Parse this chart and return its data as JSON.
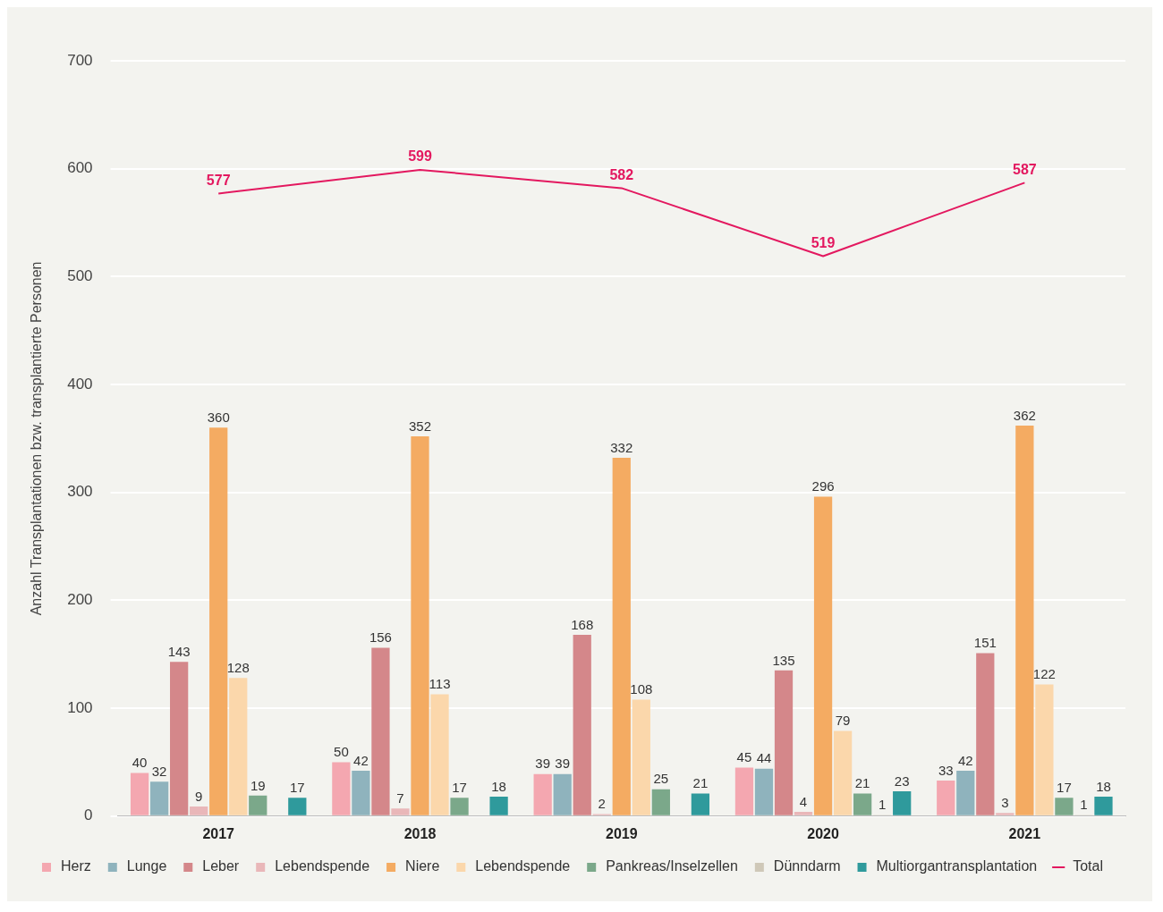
{
  "chart_data": {
    "type": "bar",
    "ylabel": "Anzahl Transplantationen bzw. transplantierte Personen",
    "categories": [
      "2017",
      "2018",
      "2019",
      "2020",
      "2021"
    ],
    "ylim": [
      0,
      700
    ],
    "yticks": [
      0,
      100,
      200,
      300,
      400,
      500,
      600,
      700
    ],
    "grid": "y",
    "legend": "bottom",
    "data_labels": true,
    "series": [
      {
        "name": "Herz",
        "color": "#f4a7b0",
        "values": [
          40,
          50,
          39,
          45,
          33
        ]
      },
      {
        "name": "Lunge",
        "color": "#8fb3bd",
        "values": [
          32,
          42,
          39,
          44,
          42
        ]
      },
      {
        "name": "Leber",
        "color": "#d4878a",
        "values": [
          143,
          156,
          168,
          135,
          151
        ]
      },
      {
        "name": "Lebendspende",
        "color": "#e9b7b9",
        "values": [
          9,
          7,
          2,
          4,
          3
        ]
      },
      {
        "name": "Niere",
        "color": "#f4ab62",
        "values": [
          360,
          352,
          332,
          296,
          362
        ]
      },
      {
        "name": "Lebendspende",
        "color": "#fbd7ab",
        "values": [
          128,
          113,
          108,
          79,
          122
        ]
      },
      {
        "name": "Pankreas/Inselzellen",
        "color": "#7ba88a",
        "values": [
          19,
          17,
          25,
          21,
          17
        ]
      },
      {
        "name": "Dünndarm",
        "color": "#cfc8b8",
        "values": [
          null,
          null,
          null,
          1,
          1
        ]
      },
      {
        "name": "Multiorgantransplantation",
        "color": "#2f9a9c",
        "values": [
          17,
          18,
          21,
          23,
          18
        ]
      },
      {
        "name": "Total",
        "type": "line",
        "color": "#e3185f",
        "values": [
          577,
          599,
          582,
          519,
          587
        ]
      }
    ]
  }
}
